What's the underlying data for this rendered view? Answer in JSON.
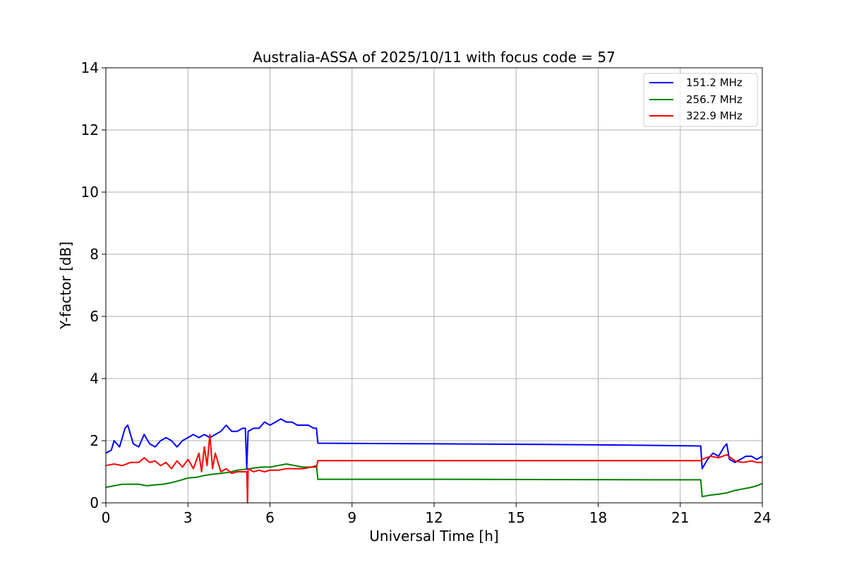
{
  "chart_data": {
    "type": "line",
    "title": "Australia-ASSA of 2025/10/11 with focus code = 57",
    "xlabel": "Universal Time [h]",
    "ylabel": "Y-factor [dB]",
    "xlim": [
      0,
      24
    ],
    "ylim": [
      0,
      14
    ],
    "xticks": [
      0,
      3,
      6,
      9,
      12,
      15,
      18,
      21,
      24
    ],
    "yticks": [
      0,
      2,
      4,
      6,
      8,
      10,
      12,
      14
    ],
    "xtick_labels": [
      "0",
      "3",
      "6",
      "9",
      "12",
      "15",
      "18",
      "21",
      "24"
    ],
    "ytick_labels": [
      "0",
      "2",
      "4",
      "6",
      "8",
      "10",
      "12",
      "14"
    ],
    "grid": true,
    "legend_position": "top-right",
    "series": [
      {
        "name": "151.2 MHz",
        "color": "#0000ff",
        "points": [
          [
            0.0,
            1.6
          ],
          [
            0.2,
            1.7
          ],
          [
            0.3,
            2.0
          ],
          [
            0.5,
            1.8
          ],
          [
            0.7,
            2.4
          ],
          [
            0.8,
            2.5
          ],
          [
            1.0,
            1.9
          ],
          [
            1.2,
            1.8
          ],
          [
            1.4,
            2.2
          ],
          [
            1.6,
            1.9
          ],
          [
            1.8,
            1.8
          ],
          [
            2.0,
            2.0
          ],
          [
            2.2,
            2.1
          ],
          [
            2.4,
            2.0
          ],
          [
            2.6,
            1.8
          ],
          [
            2.8,
            2.0
          ],
          [
            3.0,
            2.1
          ],
          [
            3.2,
            2.2
          ],
          [
            3.4,
            2.1
          ],
          [
            3.6,
            2.2
          ],
          [
            3.8,
            2.1
          ],
          [
            4.0,
            2.2
          ],
          [
            4.2,
            2.3
          ],
          [
            4.4,
            2.5
          ],
          [
            4.6,
            2.3
          ],
          [
            4.8,
            2.3
          ],
          [
            5.0,
            2.4
          ],
          [
            5.1,
            2.4
          ],
          [
            5.15,
            1.1
          ],
          [
            5.2,
            2.3
          ],
          [
            5.4,
            2.4
          ],
          [
            5.6,
            2.4
          ],
          [
            5.8,
            2.6
          ],
          [
            6.0,
            2.5
          ],
          [
            6.2,
            2.6
          ],
          [
            6.4,
            2.7
          ],
          [
            6.6,
            2.6
          ],
          [
            6.8,
            2.6
          ],
          [
            7.0,
            2.5
          ],
          [
            7.2,
            2.5
          ],
          [
            7.4,
            2.5
          ],
          [
            7.6,
            2.4
          ],
          [
            7.7,
            2.4
          ],
          [
            7.75,
            1.92
          ],
          [
            12.0,
            1.9
          ],
          [
            16.0,
            1.88
          ],
          [
            20.0,
            1.85
          ],
          [
            21.75,
            1.83
          ],
          [
            21.8,
            1.1
          ],
          [
            22.0,
            1.4
          ],
          [
            22.2,
            1.6
          ],
          [
            22.4,
            1.5
          ],
          [
            22.6,
            1.8
          ],
          [
            22.7,
            1.9
          ],
          [
            22.8,
            1.4
          ],
          [
            23.0,
            1.3
          ],
          [
            23.2,
            1.4
          ],
          [
            23.4,
            1.5
          ],
          [
            23.6,
            1.5
          ],
          [
            23.8,
            1.4
          ],
          [
            24.0,
            1.5
          ]
        ]
      },
      {
        "name": "256.7 MHz",
        "color": "#008000",
        "points": [
          [
            0.0,
            0.5
          ],
          [
            0.3,
            0.55
          ],
          [
            0.6,
            0.6
          ],
          [
            0.9,
            0.6
          ],
          [
            1.2,
            0.6
          ],
          [
            1.5,
            0.55
          ],
          [
            1.8,
            0.58
          ],
          [
            2.1,
            0.6
          ],
          [
            2.4,
            0.65
          ],
          [
            2.7,
            0.72
          ],
          [
            3.0,
            0.8
          ],
          [
            3.3,
            0.82
          ],
          [
            3.6,
            0.88
          ],
          [
            3.9,
            0.92
          ],
          [
            4.2,
            0.95
          ],
          [
            4.5,
            0.98
          ],
          [
            4.8,
            1.05
          ],
          [
            5.1,
            1.08
          ],
          [
            5.4,
            1.12
          ],
          [
            5.7,
            1.15
          ],
          [
            6.0,
            1.15
          ],
          [
            6.3,
            1.2
          ],
          [
            6.6,
            1.25
          ],
          [
            6.9,
            1.2
          ],
          [
            7.2,
            1.15
          ],
          [
            7.5,
            1.15
          ],
          [
            7.7,
            1.2
          ],
          [
            7.75,
            0.76
          ],
          [
            12.0,
            0.76
          ],
          [
            16.0,
            0.75
          ],
          [
            20.0,
            0.74
          ],
          [
            21.75,
            0.74
          ],
          [
            21.8,
            0.2
          ],
          [
            22.1,
            0.25
          ],
          [
            22.4,
            0.28
          ],
          [
            22.7,
            0.32
          ],
          [
            23.0,
            0.4
          ],
          [
            23.3,
            0.45
          ],
          [
            23.6,
            0.5
          ],
          [
            23.8,
            0.55
          ],
          [
            24.0,
            0.62
          ]
        ]
      },
      {
        "name": "322.9 MHz",
        "color": "#ff0000",
        "points": [
          [
            0.0,
            1.2
          ],
          [
            0.3,
            1.25
          ],
          [
            0.6,
            1.2
          ],
          [
            0.9,
            1.3
          ],
          [
            1.2,
            1.3
          ],
          [
            1.4,
            1.45
          ],
          [
            1.6,
            1.3
          ],
          [
            1.8,
            1.35
          ],
          [
            2.0,
            1.2
          ],
          [
            2.2,
            1.3
          ],
          [
            2.4,
            1.1
          ],
          [
            2.6,
            1.35
          ],
          [
            2.8,
            1.15
          ],
          [
            3.0,
            1.4
          ],
          [
            3.2,
            1.1
          ],
          [
            3.4,
            1.6
          ],
          [
            3.5,
            1.0
          ],
          [
            3.6,
            1.8
          ],
          [
            3.7,
            1.2
          ],
          [
            3.8,
            2.2
          ],
          [
            3.9,
            1.1
          ],
          [
            4.0,
            1.6
          ],
          [
            4.2,
            1.0
          ],
          [
            4.4,
            1.1
          ],
          [
            4.6,
            0.95
          ],
          [
            4.8,
            1.0
          ],
          [
            5.0,
            1.0
          ],
          [
            5.15,
            1.0
          ],
          [
            5.18,
            0.0
          ],
          [
            5.2,
            1.1
          ],
          [
            5.4,
            1.0
          ],
          [
            5.6,
            1.05
          ],
          [
            5.8,
            1.0
          ],
          [
            6.0,
            1.05
          ],
          [
            6.3,
            1.05
          ],
          [
            6.6,
            1.1
          ],
          [
            6.9,
            1.1
          ],
          [
            7.2,
            1.1
          ],
          [
            7.5,
            1.15
          ],
          [
            7.7,
            1.15
          ],
          [
            7.75,
            1.36
          ],
          [
            12.0,
            1.36
          ],
          [
            16.0,
            1.36
          ],
          [
            20.0,
            1.36
          ],
          [
            21.75,
            1.36
          ],
          [
            21.8,
            1.4
          ],
          [
            22.1,
            1.5
          ],
          [
            22.4,
            1.45
          ],
          [
            22.7,
            1.55
          ],
          [
            23.0,
            1.35
          ],
          [
            23.3,
            1.3
          ],
          [
            23.6,
            1.35
          ],
          [
            23.8,
            1.3
          ],
          [
            24.0,
            1.3
          ]
        ]
      }
    ]
  }
}
